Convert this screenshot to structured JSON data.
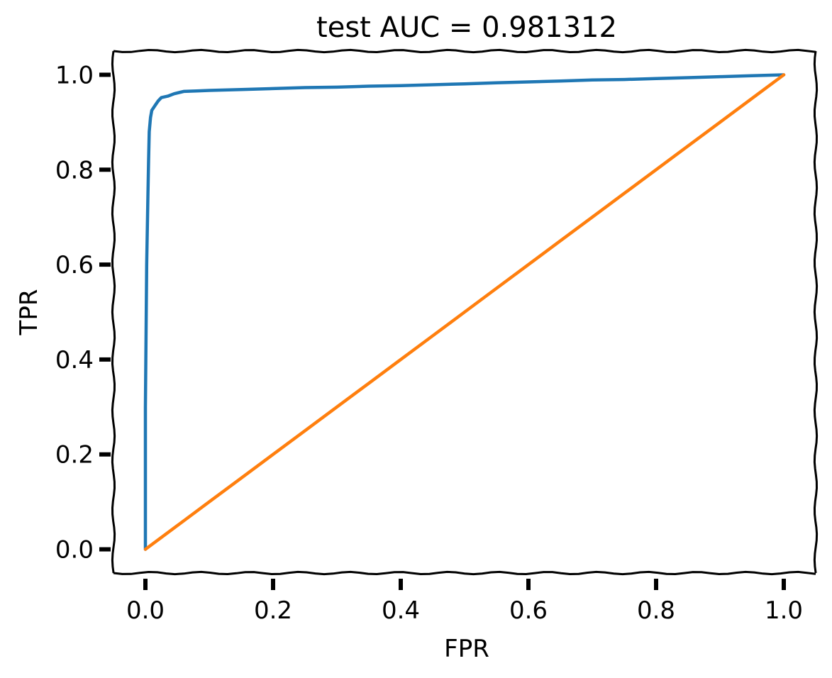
{
  "chart_data": {
    "type": "line",
    "title": "test AUC = 0.981312",
    "xlabel": "FPR",
    "ylabel": "TPR",
    "xlim": [
      -0.05,
      1.05
    ],
    "ylim": [
      -0.05,
      1.05
    ],
    "xticks": [
      "0.0",
      "0.2",
      "0.4",
      "0.6",
      "0.8",
      "1.0"
    ],
    "yticks": [
      "0.0",
      "0.2",
      "0.4",
      "0.6",
      "0.8",
      "1.0"
    ],
    "grid": false,
    "legend": false,
    "series": [
      {
        "color": "#1f77b4",
        "x": [
          0.0,
          0.0,
          0.002,
          0.004,
          0.005,
          0.006,
          0.008,
          0.01,
          0.015,
          0.02,
          0.025,
          0.035,
          0.045,
          0.06,
          0.08,
          0.1,
          0.15,
          0.2,
          0.25,
          0.3,
          0.35,
          0.4,
          0.45,
          0.5,
          0.55,
          0.6,
          0.65,
          0.7,
          0.75,
          0.8,
          0.85,
          0.9,
          0.95,
          1.0
        ],
        "y": [
          0.0,
          0.3,
          0.6,
          0.75,
          0.82,
          0.88,
          0.91,
          0.925,
          0.935,
          0.945,
          0.952,
          0.955,
          0.96,
          0.965,
          0.966,
          0.967,
          0.969,
          0.971,
          0.973,
          0.974,
          0.976,
          0.977,
          0.979,
          0.981,
          0.983,
          0.985,
          0.987,
          0.989,
          0.99,
          0.992,
          0.994,
          0.996,
          0.998,
          1.0
        ]
      },
      {
        "color": "#ff7f0e",
        "x": [
          0.0,
          0.05,
          0.1,
          0.15,
          0.2,
          0.25,
          0.3,
          0.35,
          0.4,
          0.45,
          0.5,
          0.55,
          0.6,
          0.65,
          0.7,
          0.75,
          0.8,
          0.85,
          0.9,
          0.95,
          1.0
        ],
        "y": [
          0.0,
          0.05,
          0.1,
          0.15,
          0.2,
          0.25,
          0.3,
          0.35,
          0.4,
          0.45,
          0.5,
          0.55,
          0.6,
          0.65,
          0.7,
          0.75,
          0.8,
          0.85,
          0.9,
          0.95,
          1.0
        ]
      }
    ]
  }
}
